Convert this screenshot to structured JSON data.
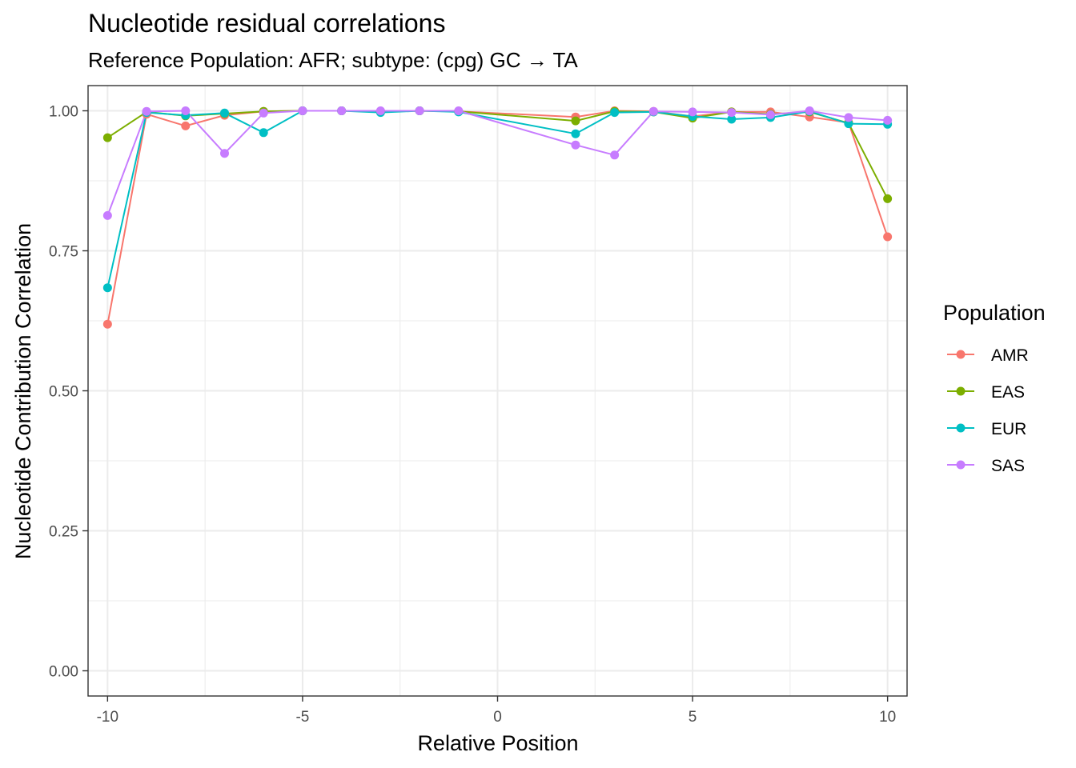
{
  "chart_data": {
    "type": "line",
    "title": "Nucleotide residual correlations",
    "subtitle": "Reference Population: AFR; subtype: (cpg) GC → TA",
    "xlabel": "Relative Position",
    "ylabel": "Nucleotide Contribution Correlation",
    "xlim": [
      -10.5,
      10.5
    ],
    "ylim": [
      -0.045,
      1.045
    ],
    "x_ticks": [
      -10,
      -5,
      0,
      5,
      10
    ],
    "x_tick_labels": [
      "-10",
      "-5",
      "0",
      "5",
      "10"
    ],
    "y_ticks": [
      0,
      0.25,
      0.5,
      0.75,
      1.0
    ],
    "y_tick_labels": [
      "0.00",
      "0.25",
      "0.50",
      "0.75",
      "1.00"
    ],
    "grid": true,
    "legend": {
      "title": "Population",
      "position": "right"
    },
    "x": [
      -10,
      -9,
      -8,
      -7,
      -6,
      -5,
      -4,
      -3,
      -2,
      -1,
      2,
      3,
      4,
      5,
      6,
      7,
      8,
      9,
      10
    ],
    "series": [
      {
        "name": "AMR",
        "color": "#F8766D",
        "values": [
          0.619,
          0.994,
          0.973,
          0.992,
          0.999,
          1.0,
          1.0,
          0.999,
          1.0,
          0.999,
          0.989,
          1.0,
          0.999,
          0.99,
          0.998,
          0.998,
          0.989,
          0.979,
          0.775
        ]
      },
      {
        "name": "EAS",
        "color": "#7CAE00",
        "values": [
          0.952,
          0.998,
          0.991,
          0.995,
          0.999,
          1.0,
          1.0,
          0.999,
          1.0,
          0.999,
          0.982,
          0.999,
          0.998,
          0.987,
          0.998,
          0.994,
          0.998,
          0.978,
          0.843
        ]
      },
      {
        "name": "EUR",
        "color": "#00BFC4",
        "values": [
          0.684,
          0.997,
          0.992,
          0.996,
          0.961,
          1.0,
          1.0,
          0.997,
          1.0,
          0.998,
          0.959,
          0.997,
          0.998,
          0.99,
          0.985,
          0.988,
          0.999,
          0.977,
          0.976
        ]
      },
      {
        "name": "SAS",
        "color": "#C77CFF",
        "values": [
          0.813,
          0.999,
          1.0,
          0.924,
          0.996,
          1.0,
          1.0,
          1.0,
          1.0,
          1.0,
          0.939,
          0.921,
          0.999,
          0.998,
          0.997,
          0.993,
          1.0,
          0.988,
          0.983
        ]
      }
    ]
  }
}
